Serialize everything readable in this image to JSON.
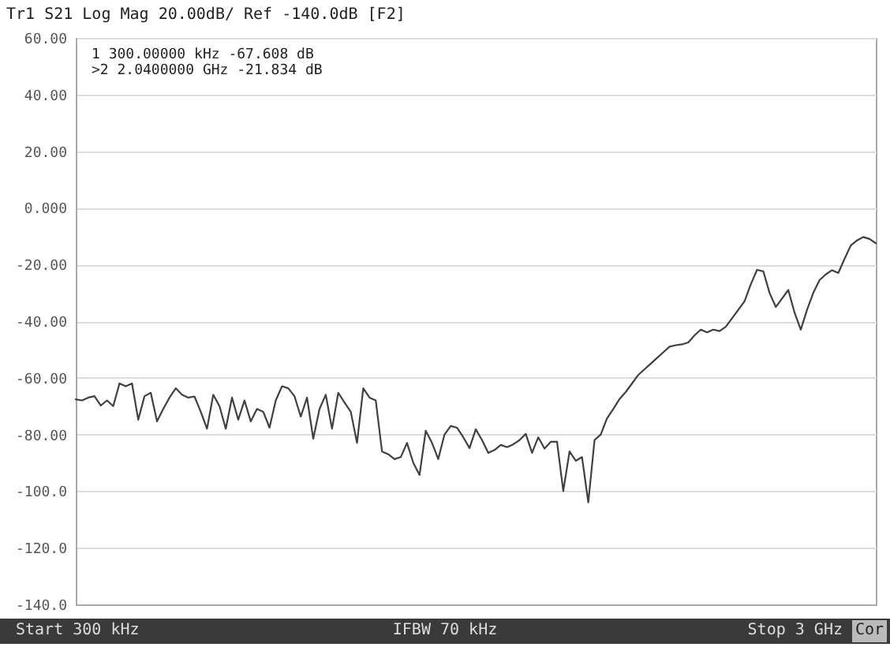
{
  "chart_data": {
    "type": "line",
    "title": "Tr1 S21 Log Mag 20.00dB/ Ref -140.0dB [F2]",
    "annotations": [
      "1  300.00000 kHz -67.608 dB",
      ">2  2.0400000 GHz -21.834 dB",
      "Start 300 kHz",
      "IFBW 70 kHz",
      "Stop 3 GHz",
      "Cor"
    ],
    "grid": "y",
    "line_style": "solid",
    "categories": [
      null,
      null,
      null,
      null,
      null,
      null,
      null,
      null,
      null,
      null,
      null,
      null,
      null,
      null,
      null,
      null,
      null,
      null,
      null,
      null,
      null,
      null,
      null,
      null,
      null,
      null,
      null,
      null,
      null,
      null,
      null,
      null,
      null,
      null,
      null,
      null,
      null,
      null,
      null,
      null,
      null,
      null,
      null,
      null,
      null,
      null,
      null,
      null,
      null,
      null,
      null,
      null,
      null,
      null,
      null,
      null,
      null,
      null,
      null,
      null,
      null,
      null,
      null,
      null,
      null,
      null,
      null,
      null,
      null,
      null,
      null,
      null,
      null,
      null,
      null,
      null,
      null,
      null,
      null,
      null,
      null,
      null,
      null,
      null,
      null,
      null,
      null,
      null,
      null,
      null,
      null,
      null,
      null,
      null,
      null,
      null,
      null,
      null,
      null,
      null,
      null,
      null,
      null,
      null,
      null,
      null,
      null,
      null,
      null,
      null,
      null,
      null,
      null,
      null,
      null,
      null,
      null,
      null,
      null,
      null,
      null,
      null,
      null,
      null,
      null,
      null,
      null,
      null,
      null
    ],
    "ylim": [
      -140,
      60
    ],
    "yticks": [
      {
        "value": 60,
        "label": "60.00"
      },
      {
        "value": 40,
        "label": "40.00"
      },
      {
        "value": 20,
        "label": "20.00"
      },
      {
        "value": 0,
        "label": "0.000"
      },
      {
        "value": -20,
        "label": "-20.00"
      },
      {
        "value": -40,
        "label": "-40.00"
      },
      {
        "value": -60,
        "label": "-60.00"
      },
      {
        "value": -80,
        "label": "-80.00"
      },
      {
        "value": -100,
        "label": "-100.0"
      },
      {
        "value": -120,
        "label": "-120.0"
      },
      {
        "value": -140,
        "label": "-140.0"
      }
    ],
    "series": [
      {
        "color": "#404040",
        "values": [
          -67.6,
          -68,
          -67,
          -66.5,
          -69.8,
          -68,
          -70,
          -62,
          -63,
          -62,
          -74.8,
          -66.5,
          -65.3,
          -75.4,
          -71,
          -67,
          -63.7,
          -66,
          -67,
          -66.6,
          -72,
          -78,
          -66,
          -70,
          -78,
          -67,
          -74.8,
          -68,
          -75.4,
          -71,
          -72,
          -77.6,
          -68,
          -63,
          -63.7,
          -66.5,
          -73.7,
          -67,
          -81.5,
          -71,
          -66,
          -78,
          -65.3,
          -68.7,
          -72,
          -83,
          -63.7,
          -67,
          -68,
          -86,
          -87,
          -88.7,
          -88,
          -83,
          -90,
          -94.3,
          -78.7,
          -83,
          -88.7,
          -80,
          -77,
          -77.6,
          -81,
          -84.8,
          -78.2,
          -82,
          -86.5,
          -85.5,
          -83.7,
          -84.5,
          -83.5,
          -82,
          -79.8,
          -86.5,
          -81,
          -85,
          -82.6,
          -82.6,
          -100,
          -86,
          -89.3,
          -88,
          -104,
          -82,
          -80,
          -74.3,
          -71,
          -67.5,
          -65,
          -62,
          -59,
          -57,
          -55,
          -53,
          -51,
          -49,
          -48.5,
          -48.2,
          -47.5,
          -45,
          -43,
          -44,
          -43,
          -43.5,
          -42,
          -39,
          -36,
          -33,
          -27,
          -21.9,
          -22.4,
          -30,
          -35,
          -32,
          -29,
          -37,
          -43,
          -36,
          -30,
          -25.5,
          -23.5,
          -22,
          -23,
          -18,
          -13.3,
          -11.5,
          -10.3,
          -11,
          -12.5
        ]
      }
    ]
  }
}
